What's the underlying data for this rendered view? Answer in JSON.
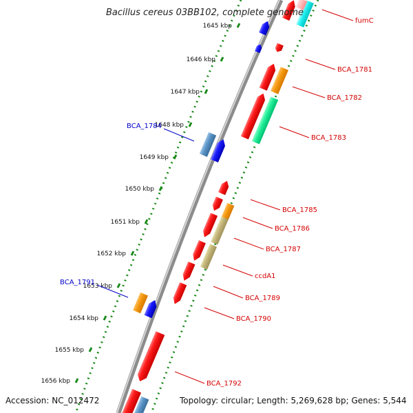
{
  "title": "Bacillus cereus 03BB102, complete genome",
  "accession": "Accession: NC_012472",
  "summary": "Topology: circular; Length: 5,269,628 bp; Genes: 5,544",
  "ticks": [
    {
      "label": "1645 kbp"
    },
    {
      "label": "1646 kbp"
    },
    {
      "label": "1647 kbp"
    },
    {
      "label": "1648 kbp"
    },
    {
      "label": "1649 kbp"
    },
    {
      "label": "1650 kbp"
    },
    {
      "label": "1651 kbp"
    },
    {
      "label": "1652 kbp"
    },
    {
      "label": "1653 kbp"
    },
    {
      "label": "1654 kbp"
    },
    {
      "label": "1655 kbp"
    },
    {
      "label": "1656 kbp"
    }
  ],
  "gene_labels": [
    {
      "name": "fumC",
      "strand": "forward",
      "color": "#d40000"
    },
    {
      "name": "BCA_1781",
      "strand": "forward",
      "color": "#d40000"
    },
    {
      "name": "BCA_1782",
      "strand": "forward",
      "color": "#d40000"
    },
    {
      "name": "BCA_1783",
      "strand": "forward",
      "color": "#d40000"
    },
    {
      "name": "BCA_1784",
      "strand": "reverse",
      "color": "#0000c8"
    },
    {
      "name": "BCA_1785",
      "strand": "forward",
      "color": "#d40000"
    },
    {
      "name": "BCA_1786",
      "strand": "forward",
      "color": "#d40000"
    },
    {
      "name": "BCA_1787",
      "strand": "forward",
      "color": "#d40000"
    },
    {
      "name": "ccdA1",
      "strand": "forward",
      "color": "#d40000"
    },
    {
      "name": "BCA_1789",
      "strand": "forward",
      "color": "#d40000"
    },
    {
      "name": "BCA_1790",
      "strand": "forward",
      "color": "#d40000"
    },
    {
      "name": "BCA_1791",
      "strand": "reverse",
      "color": "#0000c8"
    },
    {
      "name": "BCA_1792",
      "strand": "forward",
      "color": "#d40000"
    }
  ],
  "colors": {
    "cds_red": "#e60000",
    "cds_blue": "#0000e6",
    "cds_orange": "#f08c00",
    "cds_green": "#00e68a",
    "cds_cyan": "#00e5e5",
    "cds_steel": "#4a86b8",
    "cds_khaki": "#b8aa66",
    "track_green": "#1b8a1b",
    "genome_gray": "#8c8c8c"
  }
}
